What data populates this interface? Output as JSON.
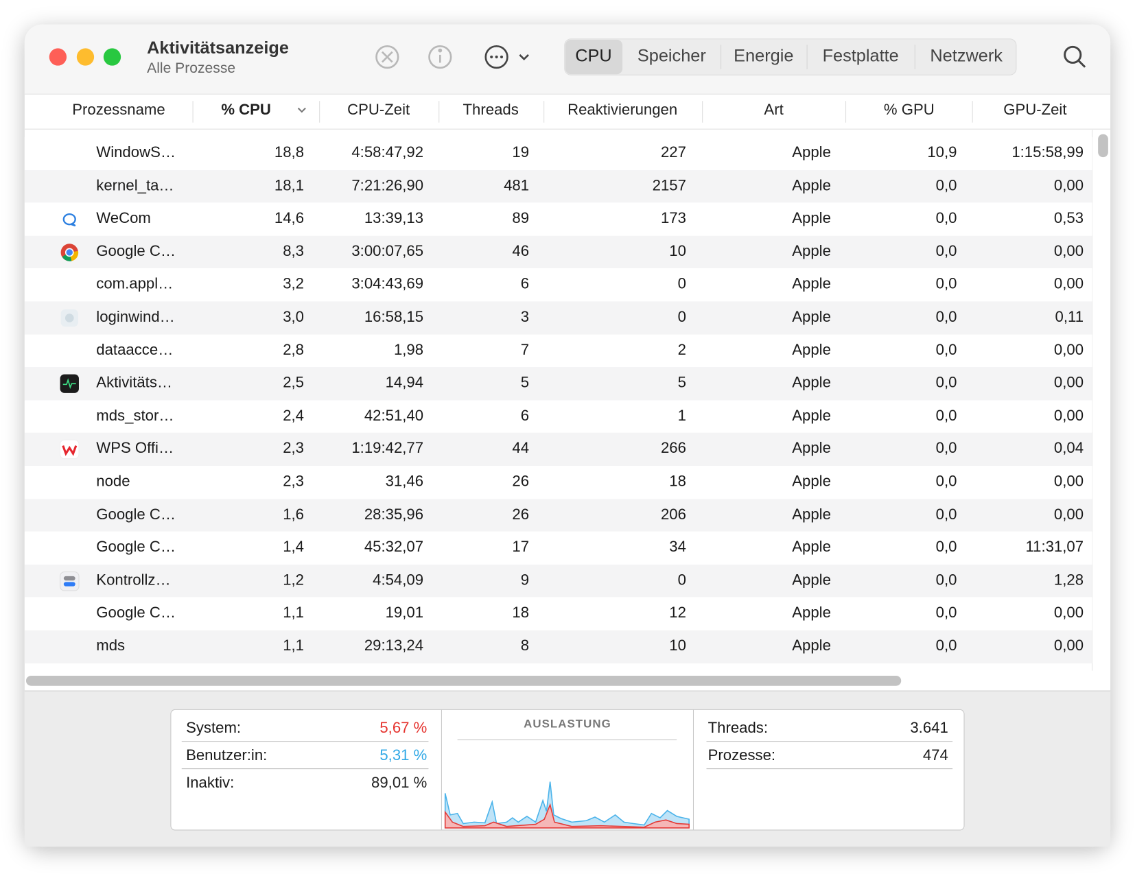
{
  "header": {
    "title": "Aktivitätsanzeige",
    "subtitle": "Alle Prozesse"
  },
  "tabs": [
    "CPU",
    "Speicher",
    "Energie",
    "Festplatte",
    "Netzwerk"
  ],
  "table": {
    "columns": [
      "Prozessname",
      "% CPU",
      "CPU-Zeit",
      "Threads",
      "Reaktivierungen",
      "Art",
      "% GPU",
      "GPU-Zeit"
    ],
    "rows": [
      [
        "WindowS…",
        "18,8",
        "4:58:47,92",
        "19",
        "227",
        "Apple",
        "10,9",
        "1:15:58,99"
      ],
      [
        "kernel_ta…",
        "18,1",
        "7:21:26,90",
        "481",
        "2157",
        "Apple",
        "0,0",
        "0,00"
      ],
      [
        "WeCom",
        "14,6",
        "13:39,13",
        "89",
        "173",
        "Apple",
        "0,0",
        "0,53"
      ],
      [
        "Google C…",
        "8,3",
        "3:00:07,65",
        "46",
        "10",
        "Apple",
        "0,0",
        "0,00"
      ],
      [
        "com.appl…",
        "3,2",
        "3:04:43,69",
        "6",
        "0",
        "Apple",
        "0,0",
        "0,00"
      ],
      [
        "loginwind…",
        "3,0",
        "16:58,15",
        "3",
        "0",
        "Apple",
        "0,0",
        "0,11"
      ],
      [
        "dataacce…",
        "2,8",
        "1,98",
        "7",
        "2",
        "Apple",
        "0,0",
        "0,00"
      ],
      [
        "Aktivitäts…",
        "2,5",
        "14,94",
        "5",
        "5",
        "Apple",
        "0,0",
        "0,00"
      ],
      [
        "mds_stor…",
        "2,4",
        "42:51,40",
        "6",
        "1",
        "Apple",
        "0,0",
        "0,00"
      ],
      [
        "WPS Offi…",
        "2,3",
        "1:19:42,77",
        "44",
        "266",
        "Apple",
        "0,0",
        "0,04"
      ],
      [
        "node",
        "2,3",
        "31,46",
        "26",
        "18",
        "Apple",
        "0,0",
        "0,00"
      ],
      [
        "Google C…",
        "1,6",
        "28:35,96",
        "26",
        "206",
        "Apple",
        "0,0",
        "0,00"
      ],
      [
        "Google C…",
        "1,4",
        "45:32,07",
        "17",
        "34",
        "Apple",
        "0,0",
        "11:31,07"
      ],
      [
        "Kontrollz…",
        "1,2",
        "4:54,09",
        "9",
        "0",
        "Apple",
        "0,0",
        "1,28"
      ],
      [
        "Google C…",
        "1,1",
        "19,01",
        "18",
        "12",
        "Apple",
        "0,0",
        "0,00"
      ],
      [
        "mds",
        "1,1",
        "29:13,24",
        "8",
        "10",
        "Apple",
        "0,0",
        "0,00"
      ]
    ]
  },
  "footer": {
    "cpu": [
      [
        "System:",
        "5,67 %"
      ],
      [
        "Benutzer:in:",
        "5,31 %"
      ],
      [
        "Inaktiv:",
        "89,01 %"
      ]
    ],
    "graph_label": "AUSLASTUNG",
    "totals": [
      [
        "Threads:",
        "3.641"
      ],
      [
        "Prozesse:",
        "474"
      ]
    ]
  }
}
